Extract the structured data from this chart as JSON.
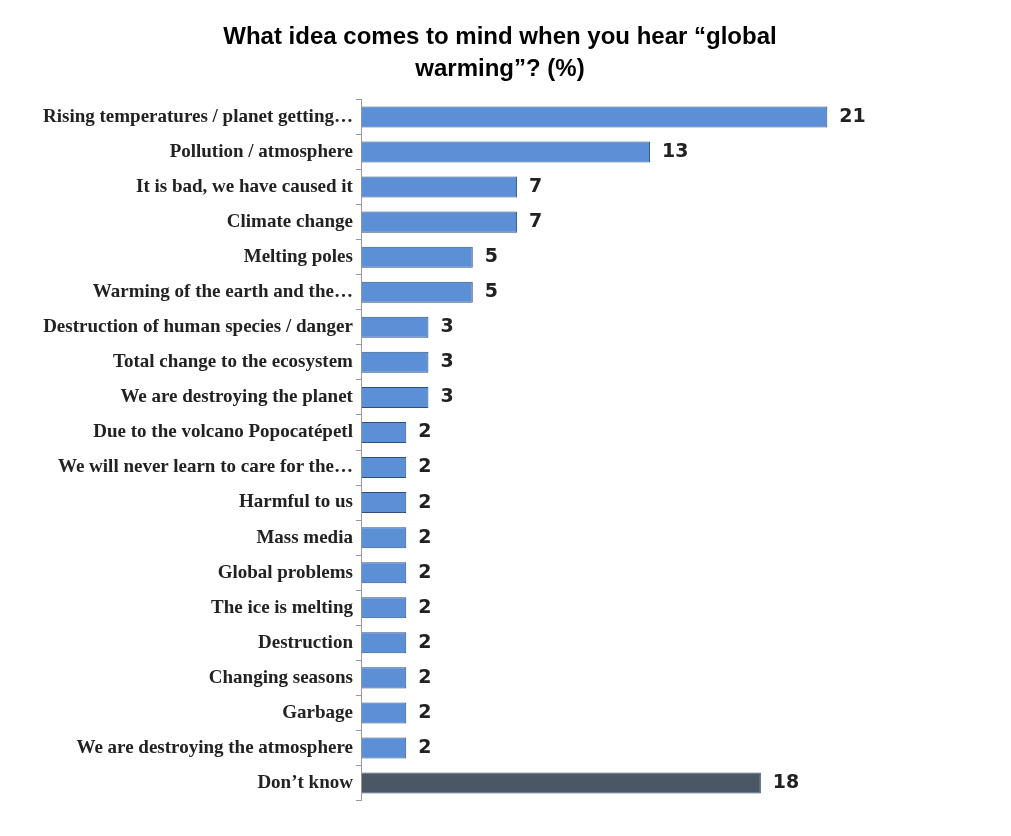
{
  "chart_data": {
    "type": "bar",
    "orientation": "horizontal",
    "title": "What idea comes to mind when you hear “global warming”? (%)",
    "categories": [
      "Rising temperatures / planet getting…",
      "Pollution / atmosphere",
      "It is bad, we have caused it",
      "Climate change",
      "Melting poles",
      "Warming of the earth and the…",
      "Destruction of human species / danger",
      "Total change to the ecosystem",
      "We are destroying the planet",
      "Due to the volcano Popocatépetl",
      "We will never learn to care for the…",
      "Harmful to us",
      "Mass media",
      "Global problems",
      "The ice is melting",
      "Destruction",
      "Changing seasons",
      "Garbage",
      "We are destroying the atmosphere",
      "Don’t know"
    ],
    "values": [
      21,
      13,
      7,
      7,
      5,
      5,
      3,
      3,
      3,
      2,
      2,
      2,
      2,
      2,
      2,
      2,
      2,
      2,
      2,
      18
    ],
    "colors": [
      "#5b8fd6",
      "#5b8fd6",
      "#5b8fd6",
      "#5b8fd6",
      "#5b8fd6",
      "#5b8fd6",
      "#5b8fd6",
      "#5b8fd6",
      "#5b8fd6",
      "#5b8fd6",
      "#5b8fd6",
      "#5b8fd6",
      "#5b8fd6",
      "#5b8fd6",
      "#5b8fd6",
      "#5b8fd6",
      "#5b8fd6",
      "#5b8fd6",
      "#5b8fd6",
      "#4a5866"
    ],
    "data_labels": true,
    "grid": false,
    "legend": false,
    "tick_labels": "y"
  }
}
